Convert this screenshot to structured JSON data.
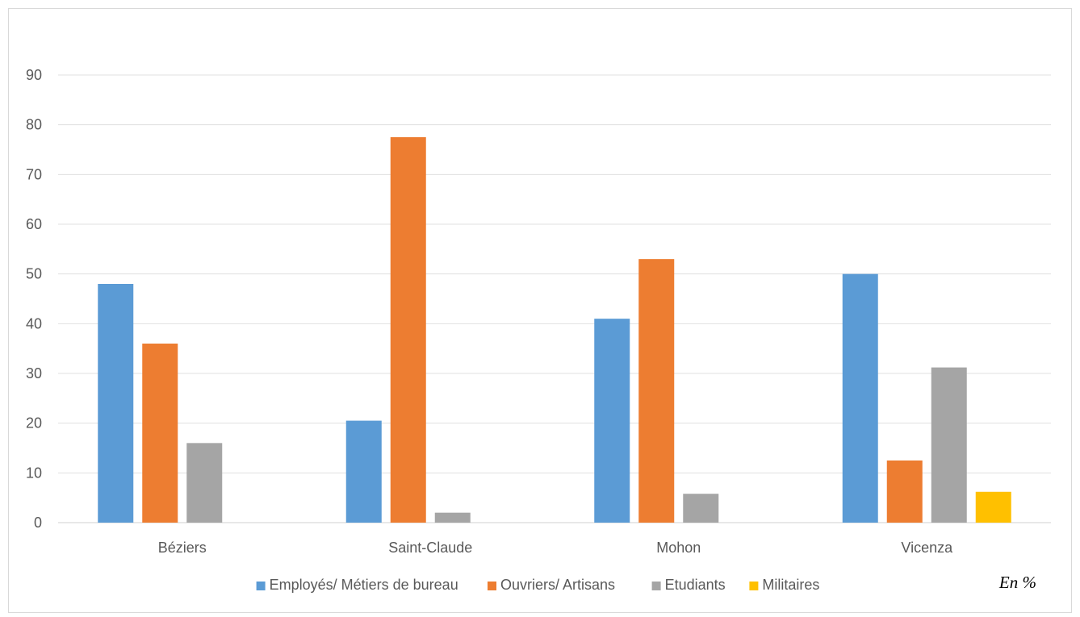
{
  "chart_data": {
    "type": "bar",
    "title": "",
    "xlabel": "",
    "ylabel": "",
    "unit_note": "En %",
    "categories": [
      "Béziers",
      "Saint-Claude",
      "Mohon",
      "Vicenza"
    ],
    "series": [
      {
        "name": "Employés/ Métiers de bureau",
        "color": "#5b9bd5",
        "values": [
          48,
          20.5,
          41,
          50
        ]
      },
      {
        "name": "Ouvriers/ Artisans",
        "color": "#ed7d31",
        "values": [
          36,
          77.5,
          53,
          12.5
        ]
      },
      {
        "name": "Etudiants",
        "color": "#a5a5a5",
        "values": [
          16,
          2,
          5.8,
          31.2
        ]
      },
      {
        "name": "Militaires",
        "color": "#ffc000",
        "values": [
          0,
          0,
          0,
          6.2
        ]
      }
    ],
    "ylim": [
      0,
      90
    ],
    "yticks": [
      0,
      10,
      20,
      30,
      40,
      50,
      60,
      70,
      80,
      90
    ],
    "grid": true,
    "legend_position": "bottom"
  }
}
